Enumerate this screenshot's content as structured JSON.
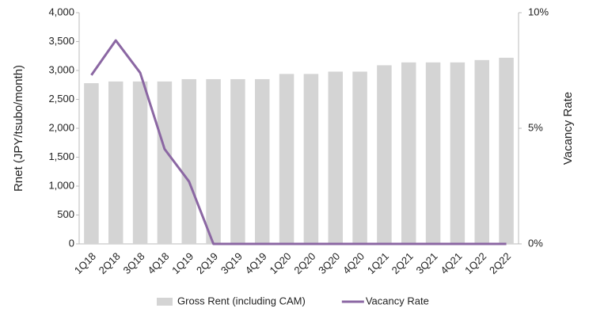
{
  "chart_data": {
    "type": "bar_line",
    "y_label": "Rnet (JPY/tsubo/month)",
    "y2_label": "Vacancy Rate",
    "categories": [
      "1Q18",
      "2Q18",
      "3Q18",
      "4Q18",
      "1Q19",
      "2Q19",
      "3Q19",
      "4Q19",
      "1Q20",
      "2Q20",
      "3Q20",
      "4Q20",
      "1Q21",
      "2Q21",
      "3Q21",
      "4Q21",
      "1Q22",
      "2Q22"
    ],
    "series": [
      {
        "name": "Gross Rent (including CAM)",
        "type": "bar",
        "color": "#d4d4d4",
        "values": [
          2780,
          2810,
          2810,
          2810,
          2850,
          2850,
          2850,
          2850,
          2940,
          2940,
          2980,
          2980,
          3090,
          3140,
          3140,
          3140,
          3180,
          3220
        ]
      },
      {
        "name": "Vacancy Rate",
        "type": "line",
        "axis": "y2",
        "color": "#8b67a3",
        "values": [
          7.3,
          8.8,
          7.4,
          4.1,
          2.7,
          0,
          0,
          0,
          0,
          0,
          0,
          0,
          0,
          0,
          0,
          0,
          0,
          0
        ]
      }
    ],
    "ylim": [
      0,
      4000
    ],
    "yticks": [
      0,
      500,
      {
        "value": 1000,
        "label": "1,000"
      },
      {
        "value": 1500,
        "label": "1,500"
      },
      {
        "value": 2000,
        "label": "2,000"
      },
      {
        "value": 2500,
        "label": "2,500"
      },
      {
        "value": 3000,
        "label": "3,000"
      },
      {
        "value": 3500,
        "label": "3,500"
      },
      {
        "value": 4000,
        "label": "4,000"
      }
    ],
    "y2lim": [
      0,
      10
    ],
    "y2ticks": [
      {
        "value": 0,
        "label": "0%"
      },
      {
        "value": 5,
        "label": "5%"
      },
      {
        "value": 10,
        "label": "10%"
      }
    ]
  }
}
